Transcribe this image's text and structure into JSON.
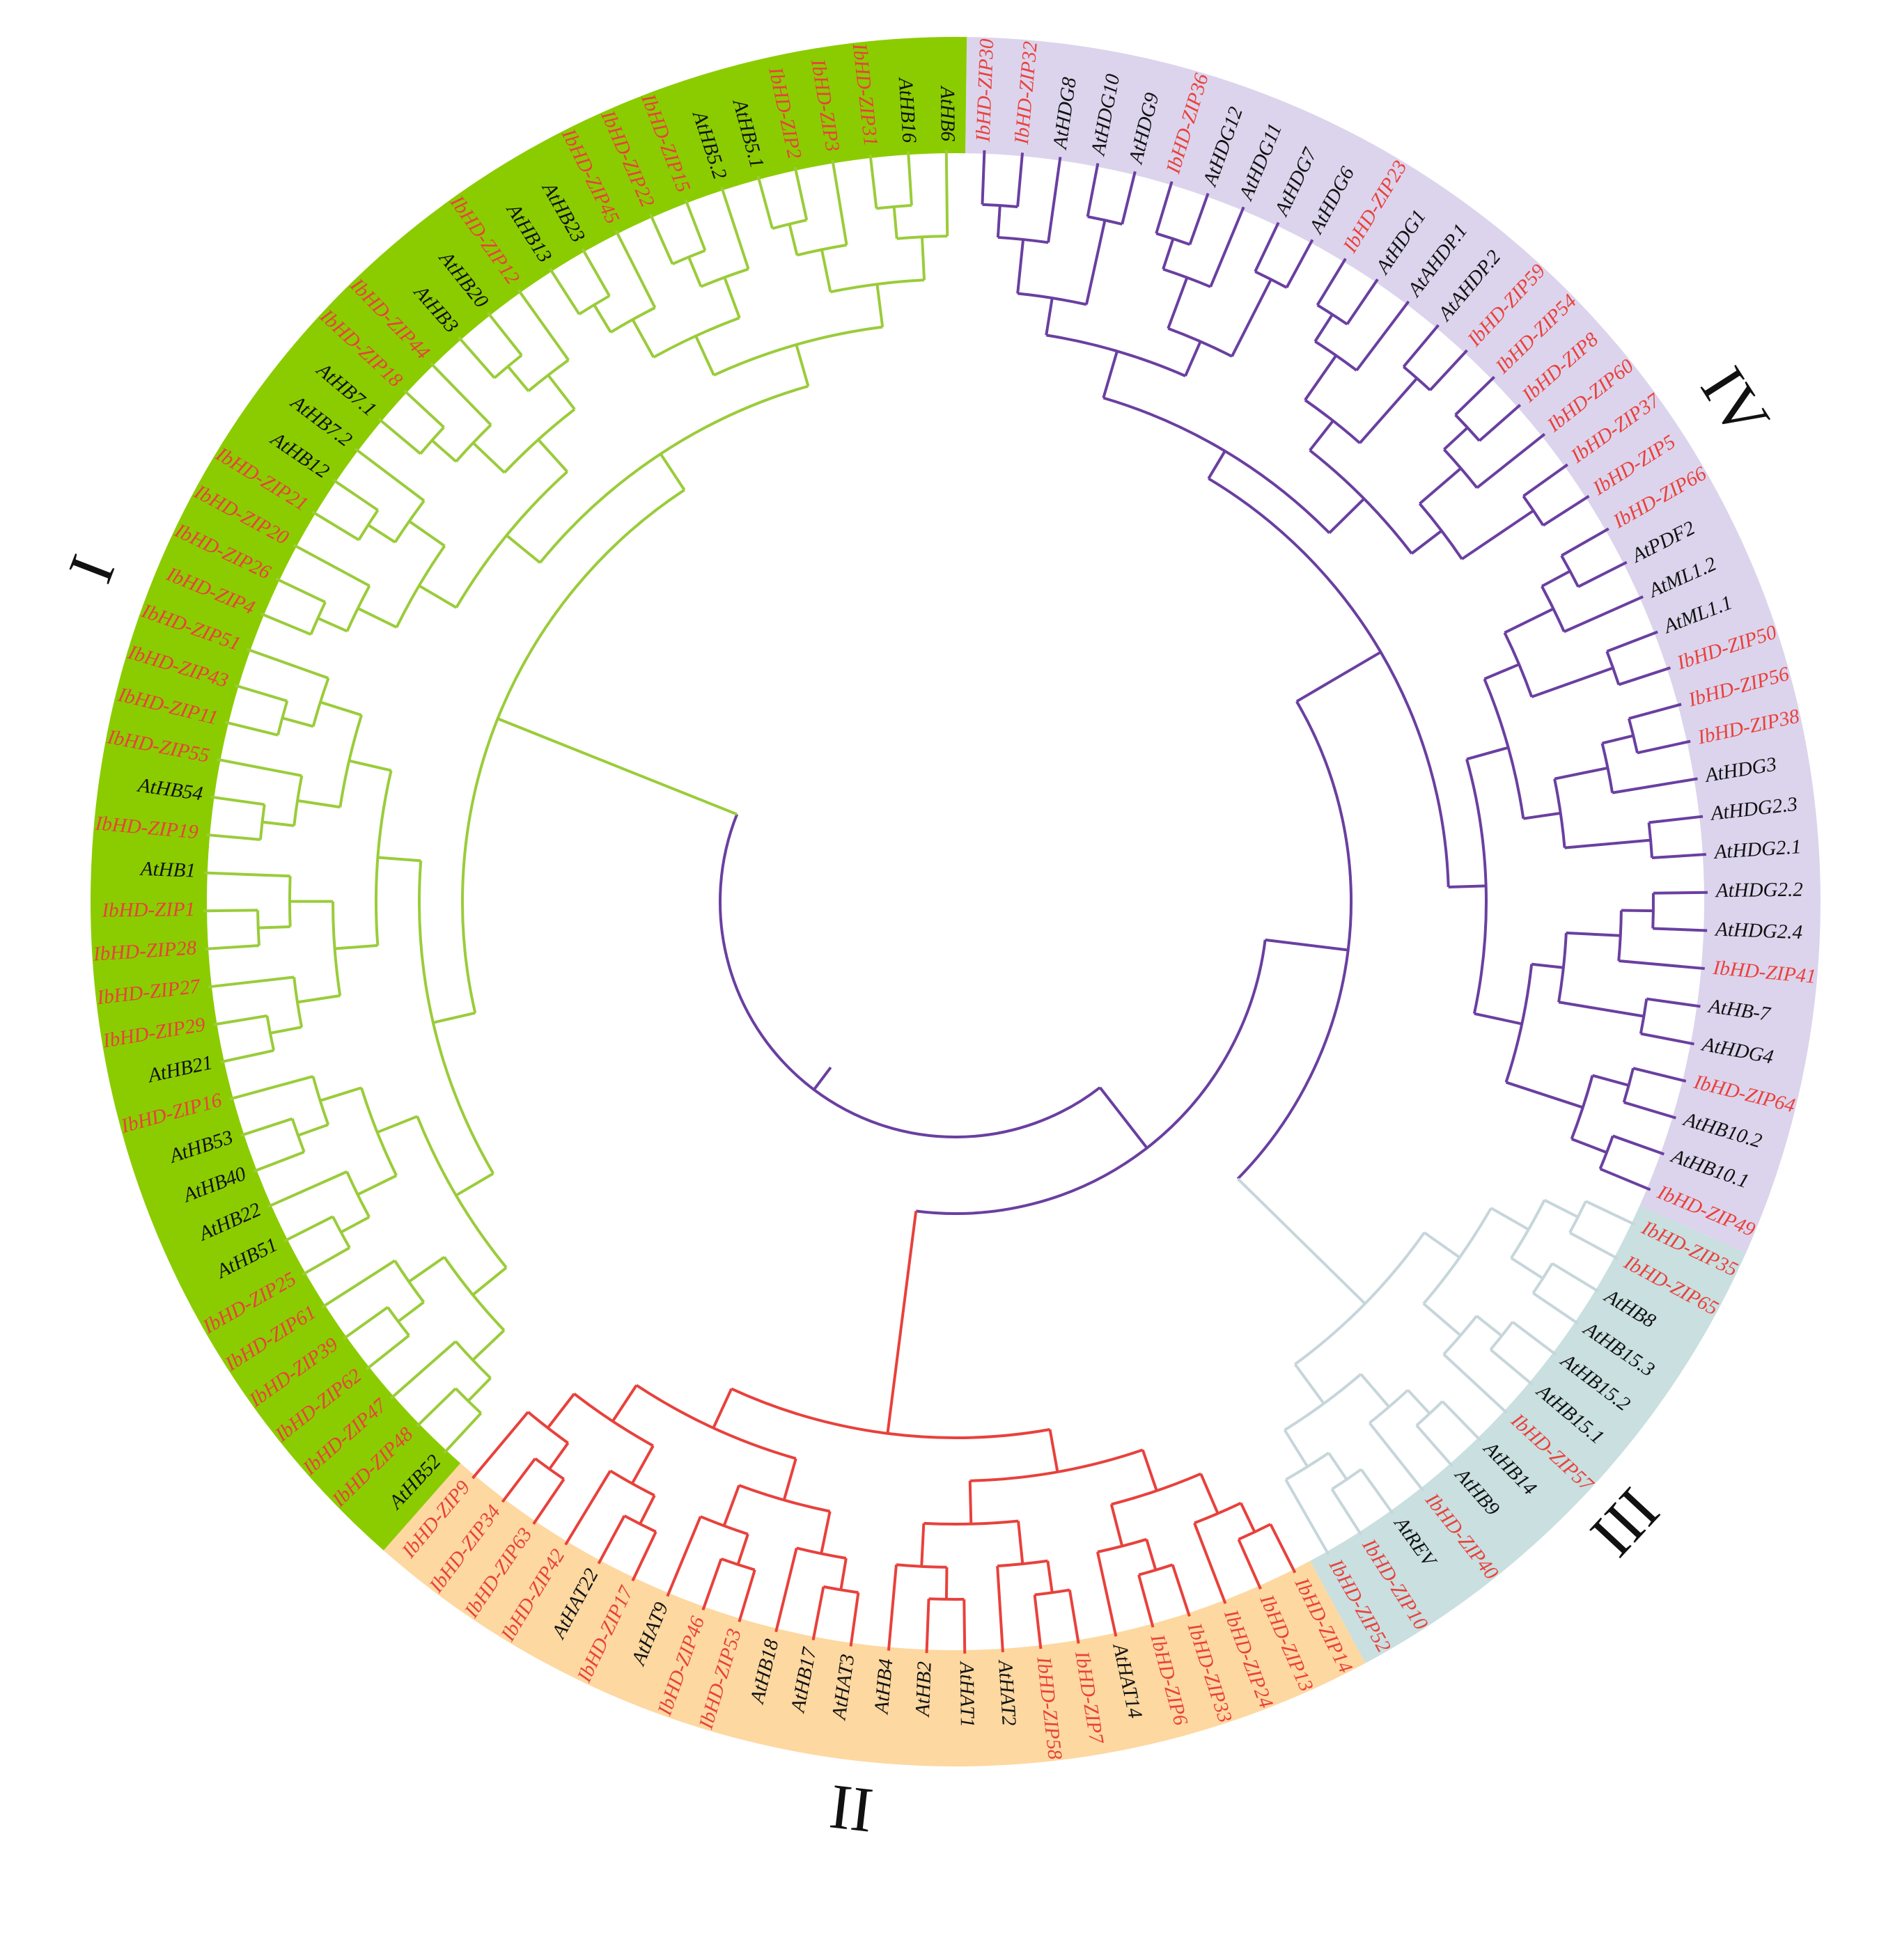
{
  "diagram": {
    "type": "circular phylogenetic tree",
    "label_colors": {
      "Ib": "#e8413c",
      "At": "#111111"
    },
    "clades": [
      {
        "name": "IV",
        "band_color": "#dcd4ec",
        "branch_color": "#6a3fa0",
        "leaves": [
          "IbHD-ZIP30",
          "IbHD-ZIP32",
          "AtHDG8",
          "AtHDG10",
          "AtHDG9",
          "IbHD-ZIP36",
          "AtHDG12",
          "AtHDG11",
          "AtHDG7",
          "AtHDG6",
          "IbHD-ZIP23",
          "AtHDG1",
          "AtAHDP.1",
          "AtAHDP.2",
          "IbHD-ZIP59",
          "IbHD-ZIP54",
          "IbHD-ZIP8",
          "IbHD-ZIP60",
          "IbHD-ZIP37",
          "IbHD-ZIP5",
          "IbHD-ZIP66",
          "AtPDF2",
          "AtML1.2",
          "AtML1.1",
          "IbHD-ZIP50",
          "IbHD-ZIP56",
          "IbHD-ZIP38",
          "AtHDG3",
          "AtHDG2.3",
          "AtHDG2.1",
          "AtHDG2.2",
          "AtHDG2.4",
          "IbHD-ZIP41",
          "AtHB-7",
          "AtHDG4",
          "IbHD-ZIP64",
          "AtHB10.2",
          "AtHB10.1",
          "IbHD-ZIP49"
        ]
      },
      {
        "name": "III",
        "band_color": "#c9dfe0",
        "branch_color": "#c6d6da",
        "leaves": [
          "IbHD-ZIP35",
          "IbHD-ZIP65",
          "AtHB8",
          "AtHB15.3",
          "AtHB15.2",
          "AtHB15.1",
          "IbHD-ZIP57",
          "AtHB14",
          "AtHB9",
          "IbHD-ZIP40",
          "AtREV",
          "IbHD-ZIP10",
          "IbHD-ZIP52"
        ]
      },
      {
        "name": "II",
        "band_color": "#fdd8a0",
        "branch_color": "#e8413c",
        "leaves": [
          "IbHD-ZIP14",
          "IbHD-ZIP13",
          "IbHD-ZIP24",
          "IbHD-ZIP33",
          "IbHD-ZIP6",
          "AtHAT14",
          "IbHD-ZIP7",
          "IbHD-ZIP58",
          "AtHAT2",
          "AtHAT1",
          "AtHB2",
          "AtHB4",
          "AtHAT3",
          "AtHB17",
          "AtHB18",
          "IbHD-ZIP53",
          "IbHD-ZIP46",
          "AtHAT9",
          "IbHD-ZIP17",
          "AtHAT22",
          "IbHD-ZIP42",
          "IbHD-ZIP63",
          "IbHD-ZIP34",
          "IbHD-ZIP9"
        ]
      },
      {
        "name": "I",
        "band_color": "#8bcc00",
        "branch_color": "#9acc3a",
        "leaves": [
          "AtHB52",
          "IbHD-ZIP48",
          "IbHD-ZIP47",
          "IbHD-ZIP62",
          "IbHD-ZIP39",
          "IbHD-ZIP61",
          "IbHD-ZIP25",
          "AtHB51",
          "AtHB22",
          "AtHB40",
          "AtHB53",
          "IbHD-ZIP16",
          "AtHB21",
          "IbHD-ZIP29",
          "IbHD-ZIP27",
          "IbHD-ZIP28",
          "IbHD-ZIP1",
          "AtHB1",
          "IbHD-ZIP19",
          "AtHB54",
          "IbHD-ZIP55",
          "IbHD-ZIP11",
          "IbHD-ZIP43",
          "IbHD-ZIP51",
          "IbHD-ZIP4",
          "IbHD-ZIP26",
          "IbHD-ZIP20",
          "IbHD-ZIP21",
          "AtHB12",
          "AtHB7.2",
          "AtHB7.1",
          "IbHD-ZIP18",
          "IbHD-ZIP44",
          "AtHB3",
          "AtHB20",
          "IbHD-ZIP12",
          "AtHB13",
          "AtHB23",
          "IbHD-ZIP45",
          "IbHD-ZIP22",
          "IbHD-ZIP15",
          "AtHB5.2",
          "AtHB5.1",
          "IbHD-ZIP2",
          "IbHD-ZIP3",
          "IbHD-ZIP31",
          "AtHB16",
          "AtHB6"
        ]
      }
    ],
    "root_branch_color": "#6a3fa0"
  }
}
